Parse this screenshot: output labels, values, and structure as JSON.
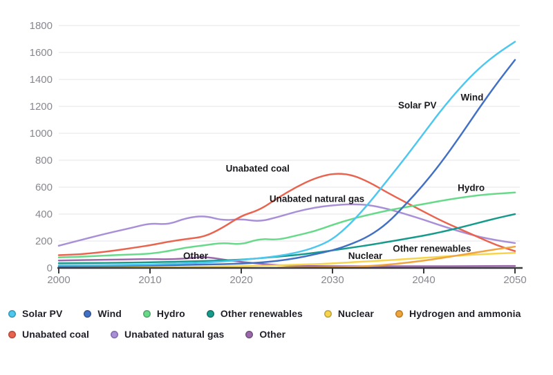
{
  "chart_data": {
    "type": "line",
    "title": "",
    "xlabel": "",
    "ylabel": "",
    "x": [
      2000,
      2002,
      2004,
      2006,
      2008,
      2010,
      2012,
      2014,
      2016,
      2018,
      2020,
      2022,
      2024,
      2026,
      2028,
      2030,
      2032,
      2034,
      2036,
      2038,
      2040,
      2042,
      2044,
      2046,
      2048,
      2050
    ],
    "xticks": [
      2000,
      2010,
      2020,
      2030,
      2040,
      2050
    ],
    "yticks": [
      0,
      200,
      400,
      600,
      800,
      1000,
      1200,
      1400,
      1600,
      1800
    ],
    "ylim": [
      0,
      1800
    ],
    "grid": "horizontal",
    "legend_position": "bottom",
    "series": [
      {
        "name": "Solar PV",
        "color": "#4ec7ef",
        "values": [
          20,
          20,
          21,
          22,
          24,
          26,
          30,
          34,
          40,
          48,
          60,
          72,
          88,
          112,
          150,
          210,
          330,
          480,
          650,
          820,
          1000,
          1180,
          1340,
          1480,
          1590,
          1680
        ]
      },
      {
        "name": "Wind",
        "color": "#4170c4",
        "values": [
          12,
          13,
          14,
          15,
          16,
          18,
          20,
          23,
          26,
          28,
          32,
          40,
          52,
          72,
          100,
          130,
          175,
          235,
          330,
          470,
          620,
          790,
          980,
          1180,
          1370,
          1545
        ]
      },
      {
        "name": "Hydro",
        "color": "#67da8a",
        "values": [
          78,
          82,
          88,
          95,
          100,
          105,
          125,
          152,
          168,
          188,
          172,
          218,
          208,
          240,
          272,
          320,
          362,
          396,
          426,
          452,
          474,
          500,
          522,
          540,
          552,
          560
        ]
      },
      {
        "name": "Other renewables",
        "color": "#159a8c",
        "values": [
          35,
          36,
          37,
          38,
          40,
          42,
          45,
          48,
          52,
          56,
          62,
          72,
          84,
          96,
          112,
          130,
          150,
          170,
          193,
          216,
          240,
          268,
          300,
          335,
          370,
          400
        ]
      },
      {
        "name": "Nuclear",
        "color": "#f6d44c",
        "values": [
          3,
          3,
          4,
          4,
          5,
          6,
          7,
          8,
          10,
          11,
          13,
          16,
          20,
          24,
          28,
          34,
          42,
          50,
          57,
          66,
          75,
          84,
          93,
          101,
          107,
          112
        ]
      },
      {
        "name": "Hydrogen and ammonia",
        "color": "#f0a43c",
        "values": [
          null,
          null,
          null,
          null,
          null,
          null,
          null,
          null,
          null,
          null,
          null,
          null,
          1,
          2,
          3,
          5,
          8,
          14,
          24,
          38,
          54,
          74,
          96,
          118,
          140,
          158
        ]
      },
      {
        "name": "Unabated coal",
        "color": "#e9644f",
        "values": [
          95,
          100,
          112,
          128,
          148,
          168,
          195,
          215,
          232,
          300,
          388,
          430,
          520,
          600,
          665,
          702,
          695,
          638,
          560,
          488,
          418,
          348,
          288,
          228,
          168,
          125
        ]
      },
      {
        "name": "Unabated natural gas",
        "color": "#a98fd8",
        "values": [
          165,
          200,
          235,
          268,
          298,
          332,
          322,
          372,
          388,
          352,
          364,
          344,
          378,
          418,
          448,
          466,
          474,
          468,
          440,
          400,
          358,
          312,
          270,
          232,
          205,
          185
        ]
      },
      {
        "name": "Other",
        "color": "#9a68a9",
        "values": [
          55,
          58,
          60,
          62,
          64,
          67,
          64,
          70,
          84,
          62,
          45,
          32,
          20,
          15,
          14,
          13,
          13,
          13,
          13,
          13,
          13,
          13,
          13,
          14,
          14,
          15
        ]
      }
    ],
    "annotations": [
      {
        "label": "Unabated coal",
        "year": 2021.8,
        "value": 735
      },
      {
        "label": "Unabated natural gas",
        "year": 2028.3,
        "value": 510
      },
      {
        "label": "Solar PV",
        "year": 2039.3,
        "value": 1205
      },
      {
        "label": "Wind",
        "year": 2045.3,
        "value": 1265
      },
      {
        "label": "Hydro",
        "year": 2045.2,
        "value": 592
      },
      {
        "label": "Other",
        "year": 2015.0,
        "value": 86
      },
      {
        "label": "Nuclear",
        "year": 2033.6,
        "value": 88
      },
      {
        "label": "Other renewables",
        "year": 2040.9,
        "value": 140
      }
    ]
  },
  "legend": {
    "row1": [
      "Solar PV",
      "Wind",
      "Hydro",
      "Other renewables",
      "Nuclear",
      "Hydrogen and ammonia"
    ],
    "row2": [
      "Unabated coal",
      "Unabated natural gas",
      "Other"
    ]
  },
  "colors": {
    "axis": "#3a3a3e",
    "gridline": "#ebebee",
    "tick_text": "#87878f",
    "annotation_text": "#1b1b1f",
    "background": "#ffffff"
  }
}
